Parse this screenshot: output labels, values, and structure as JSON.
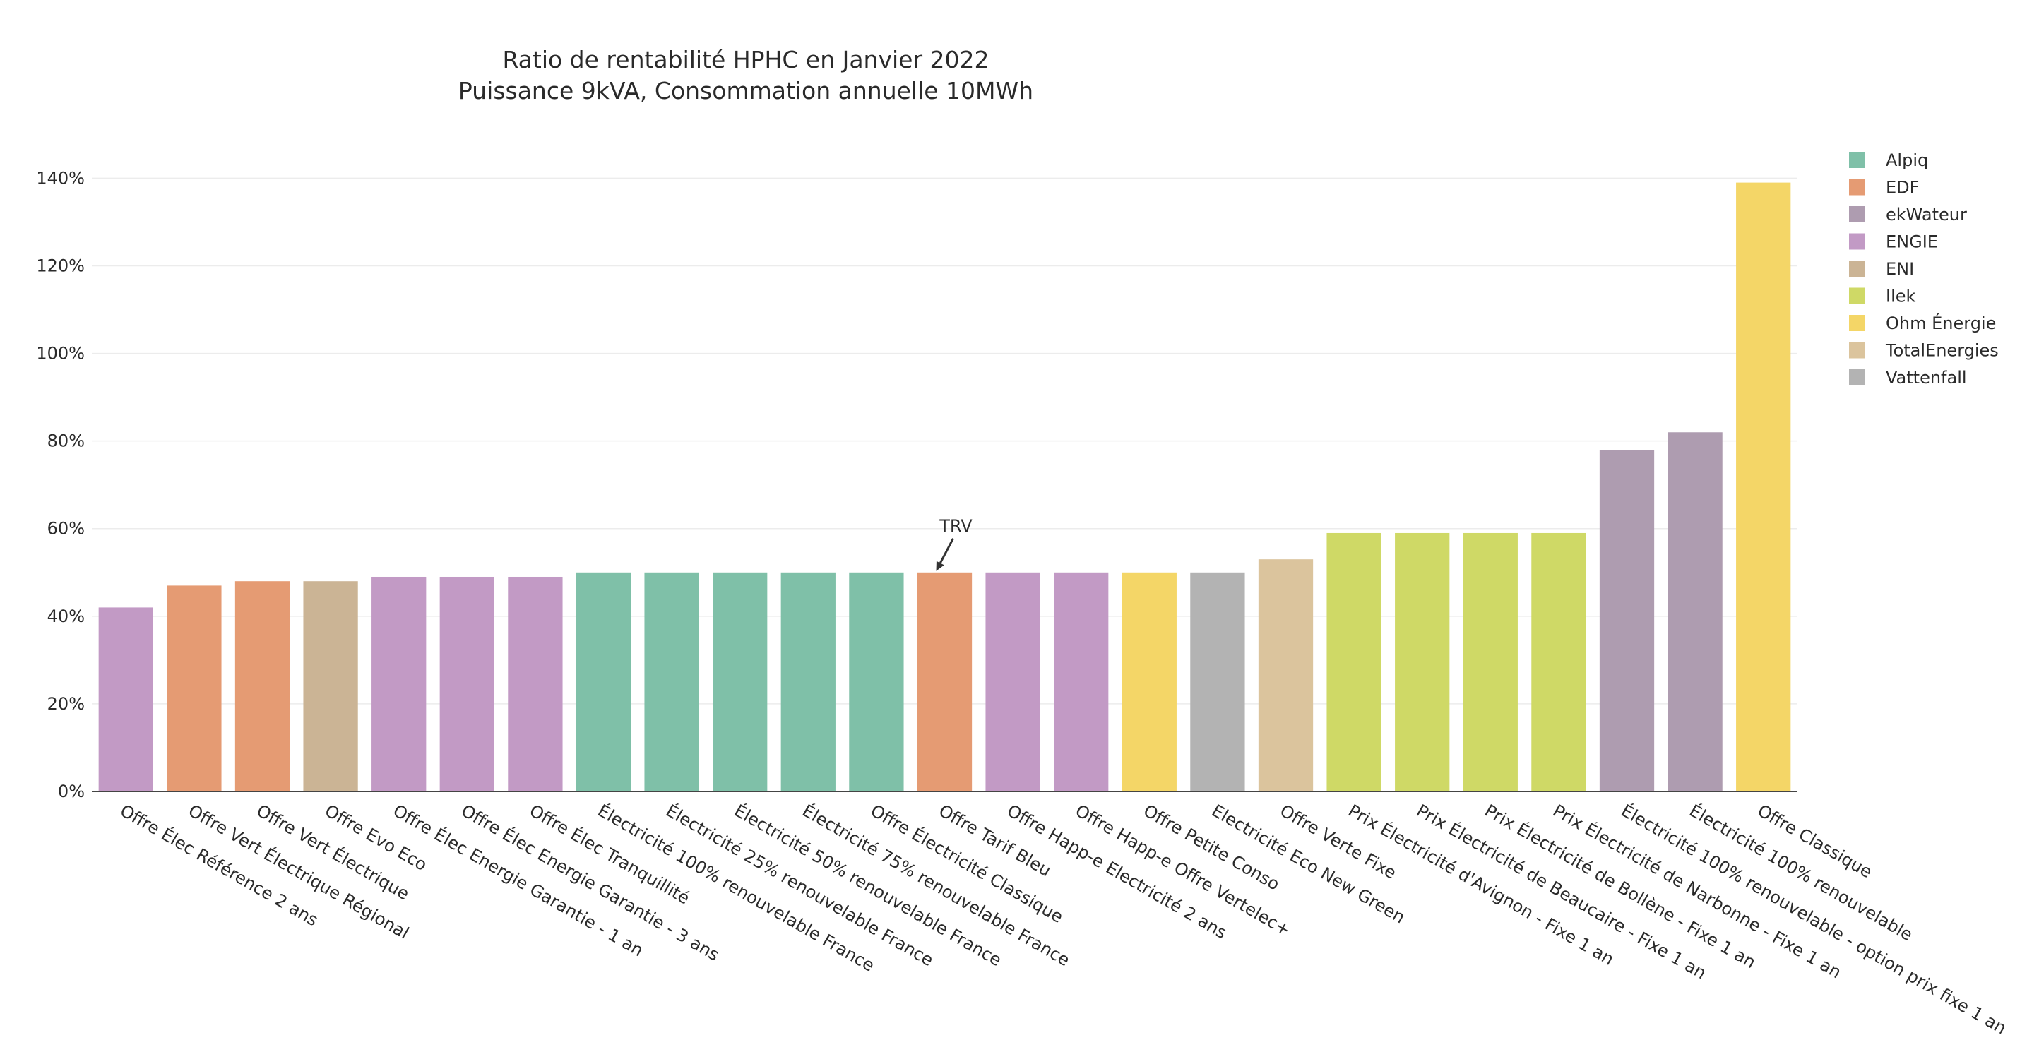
{
  "chart_data": {
    "type": "bar",
    "title": "Ratio de rentabilité HPHC en Janvier 2022",
    "subtitle": "Puissance 9kVA, Consommation annuelle 10MWh",
    "xlabel": "",
    "ylabel": "",
    "ylim": [
      0,
      1.42
    ],
    "y_tick_values": [
      0,
      0.2,
      0.4,
      0.6,
      0.8,
      1.0,
      1.2,
      1.4
    ],
    "y_tick_labels": [
      "0%",
      "20%",
      "40%",
      "60%",
      "80%",
      "100%",
      "120%",
      "140%"
    ],
    "grid": true,
    "legend_position": "top-right",
    "series": [
      {
        "name": "Alpiq",
        "color": "#7fc0a8"
      },
      {
        "name": "EDF",
        "color": "#e59b73"
      },
      {
        "name": "ekWateur",
        "color": "#ae9cb0"
      },
      {
        "name": "ENGIE",
        "color": "#c29ac5"
      },
      {
        "name": "ENI",
        "color": "#cbb495"
      },
      {
        "name": "Ilek",
        "color": "#cfd966"
      },
      {
        "name": "Ohm Énergie",
        "color": "#f4d667"
      },
      {
        "name": "TotalEnergies",
        "color": "#dbc49d"
      },
      {
        "name": "Vattenfall",
        "color": "#b3b3b3"
      }
    ],
    "bars": [
      {
        "label": "Offre Élec Référence 2 ans",
        "supplier": "ENGIE",
        "value": 0.42
      },
      {
        "label": "Offre Vert Électrique Régional",
        "supplier": "EDF",
        "value": 0.47
      },
      {
        "label": "Offre Vert Électrique",
        "supplier": "EDF",
        "value": 0.48
      },
      {
        "label": "Offre Evo Eco",
        "supplier": "ENI",
        "value": 0.48
      },
      {
        "label": "Offre Élec Energie Garantie - 1 an",
        "supplier": "ENGIE",
        "value": 0.49
      },
      {
        "label": "Offre Élec Energie Garantie - 3 ans",
        "supplier": "ENGIE",
        "value": 0.49
      },
      {
        "label": "Offre Élec Tranquillité",
        "supplier": "ENGIE",
        "value": 0.49
      },
      {
        "label": "Électricité 100% renouvelable France",
        "supplier": "Alpiq",
        "value": 0.5
      },
      {
        "label": "Électricité 25% renouvelable France",
        "supplier": "Alpiq",
        "value": 0.5
      },
      {
        "label": "Électricité 50% renouvelable France",
        "supplier": "Alpiq",
        "value": 0.5
      },
      {
        "label": "Électricité 75% renouvelable France",
        "supplier": "Alpiq",
        "value": 0.5
      },
      {
        "label": "Offre Électricité Classique",
        "supplier": "Alpiq",
        "value": 0.5
      },
      {
        "label": "Offre Tarif Bleu",
        "supplier": "EDF",
        "value": 0.5
      },
      {
        "label": "Offre Happ-e Electricité 2 ans",
        "supplier": "ENGIE",
        "value": 0.5
      },
      {
        "label": "Offre Happ-e Offre Vertelec+",
        "supplier": "ENGIE",
        "value": 0.5
      },
      {
        "label": "Offre Petite Conso",
        "supplier": "Ohm Énergie",
        "value": 0.5
      },
      {
        "label": "Electricité Eco New Green",
        "supplier": "Vattenfall",
        "value": 0.5
      },
      {
        "label": "Offre Verte Fixe",
        "supplier": "TotalEnergies",
        "value": 0.53
      },
      {
        "label": "Prix Électricité d'Avignon - Fixe 1 an",
        "supplier": "Ilek",
        "value": 0.59
      },
      {
        "label": "Prix Électricité de Beaucaire - Fixe 1 an",
        "supplier": "Ilek",
        "value": 0.59
      },
      {
        "label": "Prix Électricité de Bollène - Fixe 1 an",
        "supplier": "Ilek",
        "value": 0.59
      },
      {
        "label": "Prix Électricité de Narbonne - Fixe 1 an",
        "supplier": "Ilek",
        "value": 0.59
      },
      {
        "label": "Électricité 100% renouvelable - option prix fixe 1 an",
        "supplier": "ekWateur",
        "value": 0.78
      },
      {
        "label": "Électricité 100% renouvelable",
        "supplier": "ekWateur",
        "value": 0.82
      },
      {
        "label": "Offre Classique",
        "supplier": "Ohm Énergie",
        "value": 1.39
      }
    ],
    "annotations": [
      {
        "text": "TRV",
        "bar_index": 12
      }
    ]
  }
}
